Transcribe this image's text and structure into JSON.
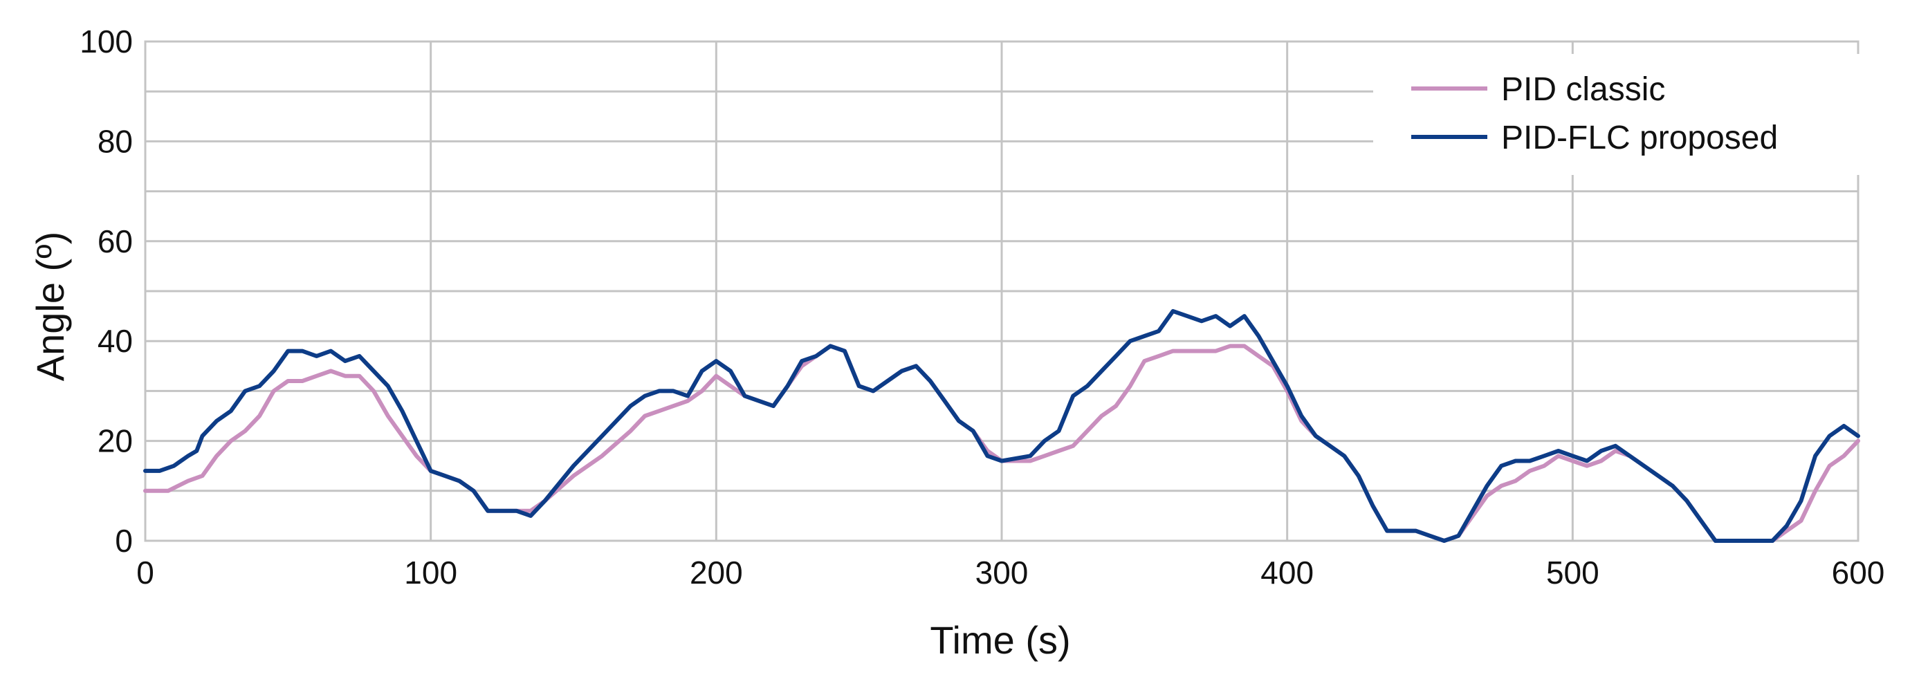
{
  "chart_data": {
    "type": "line",
    "title": "",
    "xlabel": "Time (s)",
    "ylabel": "Angle (º)",
    "xlim": [
      0,
      600
    ],
    "ylim": [
      0,
      100
    ],
    "xticks": [
      "0",
      "100",
      "200",
      "300",
      "400",
      "500",
      "600"
    ],
    "yticks": [
      "0",
      "20",
      "40",
      "60",
      "80",
      "100"
    ],
    "grid": true,
    "legend_position": "top-right",
    "series": [
      {
        "name": "PID classic",
        "color": "#c98fbe",
        "points": [
          [
            0,
            10
          ],
          [
            8,
            10
          ],
          [
            15,
            12
          ],
          [
            20,
            13
          ],
          [
            25,
            17
          ],
          [
            30,
            20
          ],
          [
            35,
            22
          ],
          [
            40,
            25
          ],
          [
            45,
            30
          ],
          [
            50,
            32
          ],
          [
            55,
            32
          ],
          [
            60,
            33
          ],
          [
            65,
            34
          ],
          [
            70,
            33
          ],
          [
            75,
            33
          ],
          [
            80,
            30
          ],
          [
            85,
            25
          ],
          [
            90,
            21
          ],
          [
            95,
            17
          ],
          [
            100,
            14
          ],
          [
            110,
            12
          ],
          [
            115,
            10
          ],
          [
            120,
            6
          ],
          [
            125,
            6
          ],
          [
            130,
            6
          ],
          [
            135,
            6
          ],
          [
            140,
            8
          ],
          [
            150,
            13
          ],
          [
            160,
            17
          ],
          [
            170,
            22
          ],
          [
            175,
            25
          ],
          [
            180,
            26
          ],
          [
            185,
            27
          ],
          [
            190,
            28
          ],
          [
            195,
            30
          ],
          [
            200,
            33
          ],
          [
            205,
            31
          ],
          [
            210,
            29
          ],
          [
            215,
            28
          ],
          [
            220,
            27
          ],
          [
            225,
            31
          ],
          [
            230,
            35
          ],
          [
            235,
            37
          ],
          [
            240,
            39
          ],
          [
            245,
            38
          ],
          [
            250,
            31
          ],
          [
            255,
            30
          ],
          [
            260,
            32
          ],
          [
            265,
            34
          ],
          [
            270,
            35
          ],
          [
            275,
            32
          ],
          [
            280,
            28
          ],
          [
            285,
            24
          ],
          [
            290,
            22
          ],
          [
            295,
            18
          ],
          [
            300,
            16
          ],
          [
            310,
            16
          ],
          [
            315,
            17
          ],
          [
            320,
            18
          ],
          [
            325,
            19
          ],
          [
            330,
            22
          ],
          [
            335,
            25
          ],
          [
            340,
            27
          ],
          [
            345,
            31
          ],
          [
            350,
            36
          ],
          [
            355,
            37
          ],
          [
            360,
            38
          ],
          [
            365,
            38
          ],
          [
            370,
            38
          ],
          [
            375,
            38
          ],
          [
            380,
            39
          ],
          [
            385,
            39
          ],
          [
            390,
            37
          ],
          [
            395,
            35
          ],
          [
            400,
            30
          ],
          [
            405,
            24
          ],
          [
            410,
            21
          ],
          [
            415,
            19
          ],
          [
            420,
            17
          ],
          [
            425,
            13
          ],
          [
            430,
            7
          ],
          [
            435,
            2
          ],
          [
            440,
            2
          ],
          [
            445,
            2
          ],
          [
            450,
            1
          ],
          [
            455,
            0
          ],
          [
            460,
            1
          ],
          [
            465,
            5
          ],
          [
            470,
            9
          ],
          [
            475,
            11
          ],
          [
            480,
            12
          ],
          [
            485,
            14
          ],
          [
            490,
            15
          ],
          [
            495,
            17
          ],
          [
            500,
            16
          ],
          [
            505,
            15
          ],
          [
            510,
            16
          ],
          [
            515,
            18
          ],
          [
            520,
            17
          ],
          [
            525,
            15
          ],
          [
            530,
            13
          ],
          [
            535,
            11
          ],
          [
            540,
            8
          ],
          [
            545,
            4
          ],
          [
            550,
            0
          ],
          [
            560,
            0
          ],
          [
            570,
            0
          ],
          [
            575,
            2
          ],
          [
            580,
            4
          ],
          [
            585,
            10
          ],
          [
            590,
            15
          ],
          [
            595,
            17
          ],
          [
            600,
            20
          ]
        ]
      },
      {
        "name": "PID-FLC proposed",
        "color": "#0d3c87",
        "points": [
          [
            0,
            14
          ],
          [
            5,
            14
          ],
          [
            10,
            15
          ],
          [
            15,
            17
          ],
          [
            18,
            18
          ],
          [
            20,
            21
          ],
          [
            25,
            24
          ],
          [
            30,
            26
          ],
          [
            35,
            30
          ],
          [
            40,
            31
          ],
          [
            45,
            34
          ],
          [
            50,
            38
          ],
          [
            55,
            38
          ],
          [
            60,
            37
          ],
          [
            65,
            38
          ],
          [
            70,
            36
          ],
          [
            75,
            37
          ],
          [
            80,
            34
          ],
          [
            85,
            31
          ],
          [
            90,
            26
          ],
          [
            95,
            20
          ],
          [
            100,
            14
          ],
          [
            110,
            12
          ],
          [
            115,
            10
          ],
          [
            120,
            6
          ],
          [
            125,
            6
          ],
          [
            130,
            6
          ],
          [
            135,
            5
          ],
          [
            140,
            8
          ],
          [
            150,
            15
          ],
          [
            160,
            21
          ],
          [
            170,
            27
          ],
          [
            175,
            29
          ],
          [
            180,
            30
          ],
          [
            185,
            30
          ],
          [
            190,
            29
          ],
          [
            195,
            34
          ],
          [
            200,
            36
          ],
          [
            205,
            34
          ],
          [
            210,
            29
          ],
          [
            215,
            28
          ],
          [
            220,
            27
          ],
          [
            225,
            31
          ],
          [
            230,
            36
          ],
          [
            235,
            37
          ],
          [
            240,
            39
          ],
          [
            245,
            38
          ],
          [
            250,
            31
          ],
          [
            255,
            30
          ],
          [
            260,
            32
          ],
          [
            265,
            34
          ],
          [
            270,
            35
          ],
          [
            275,
            32
          ],
          [
            280,
            28
          ],
          [
            285,
            24
          ],
          [
            290,
            22
          ],
          [
            295,
            17
          ],
          [
            300,
            16
          ],
          [
            310,
            17
          ],
          [
            315,
            20
          ],
          [
            320,
            22
          ],
          [
            325,
            29
          ],
          [
            330,
            31
          ],
          [
            335,
            34
          ],
          [
            340,
            37
          ],
          [
            345,
            40
          ],
          [
            350,
            41
          ],
          [
            355,
            42
          ],
          [
            360,
            46
          ],
          [
            365,
            45
          ],
          [
            370,
            44
          ],
          [
            375,
            45
          ],
          [
            380,
            43
          ],
          [
            385,
            45
          ],
          [
            390,
            41
          ],
          [
            395,
            36
          ],
          [
            400,
            31
          ],
          [
            405,
            25
          ],
          [
            410,
            21
          ],
          [
            415,
            19
          ],
          [
            420,
            17
          ],
          [
            425,
            13
          ],
          [
            430,
            7
          ],
          [
            435,
            2
          ],
          [
            440,
            2
          ],
          [
            445,
            2
          ],
          [
            450,
            1
          ],
          [
            455,
            0
          ],
          [
            460,
            1
          ],
          [
            465,
            6
          ],
          [
            470,
            11
          ],
          [
            475,
            15
          ],
          [
            480,
            16
          ],
          [
            485,
            16
          ],
          [
            490,
            17
          ],
          [
            495,
            18
          ],
          [
            500,
            17
          ],
          [
            505,
            16
          ],
          [
            510,
            18
          ],
          [
            515,
            19
          ],
          [
            520,
            17
          ],
          [
            525,
            15
          ],
          [
            530,
            13
          ],
          [
            535,
            11
          ],
          [
            540,
            8
          ],
          [
            545,
            4
          ],
          [
            550,
            0
          ],
          [
            560,
            0
          ],
          [
            570,
            0
          ],
          [
            575,
            3
          ],
          [
            580,
            8
          ],
          [
            585,
            17
          ],
          [
            590,
            21
          ],
          [
            595,
            23
          ],
          [
            600,
            21
          ]
        ]
      }
    ]
  }
}
